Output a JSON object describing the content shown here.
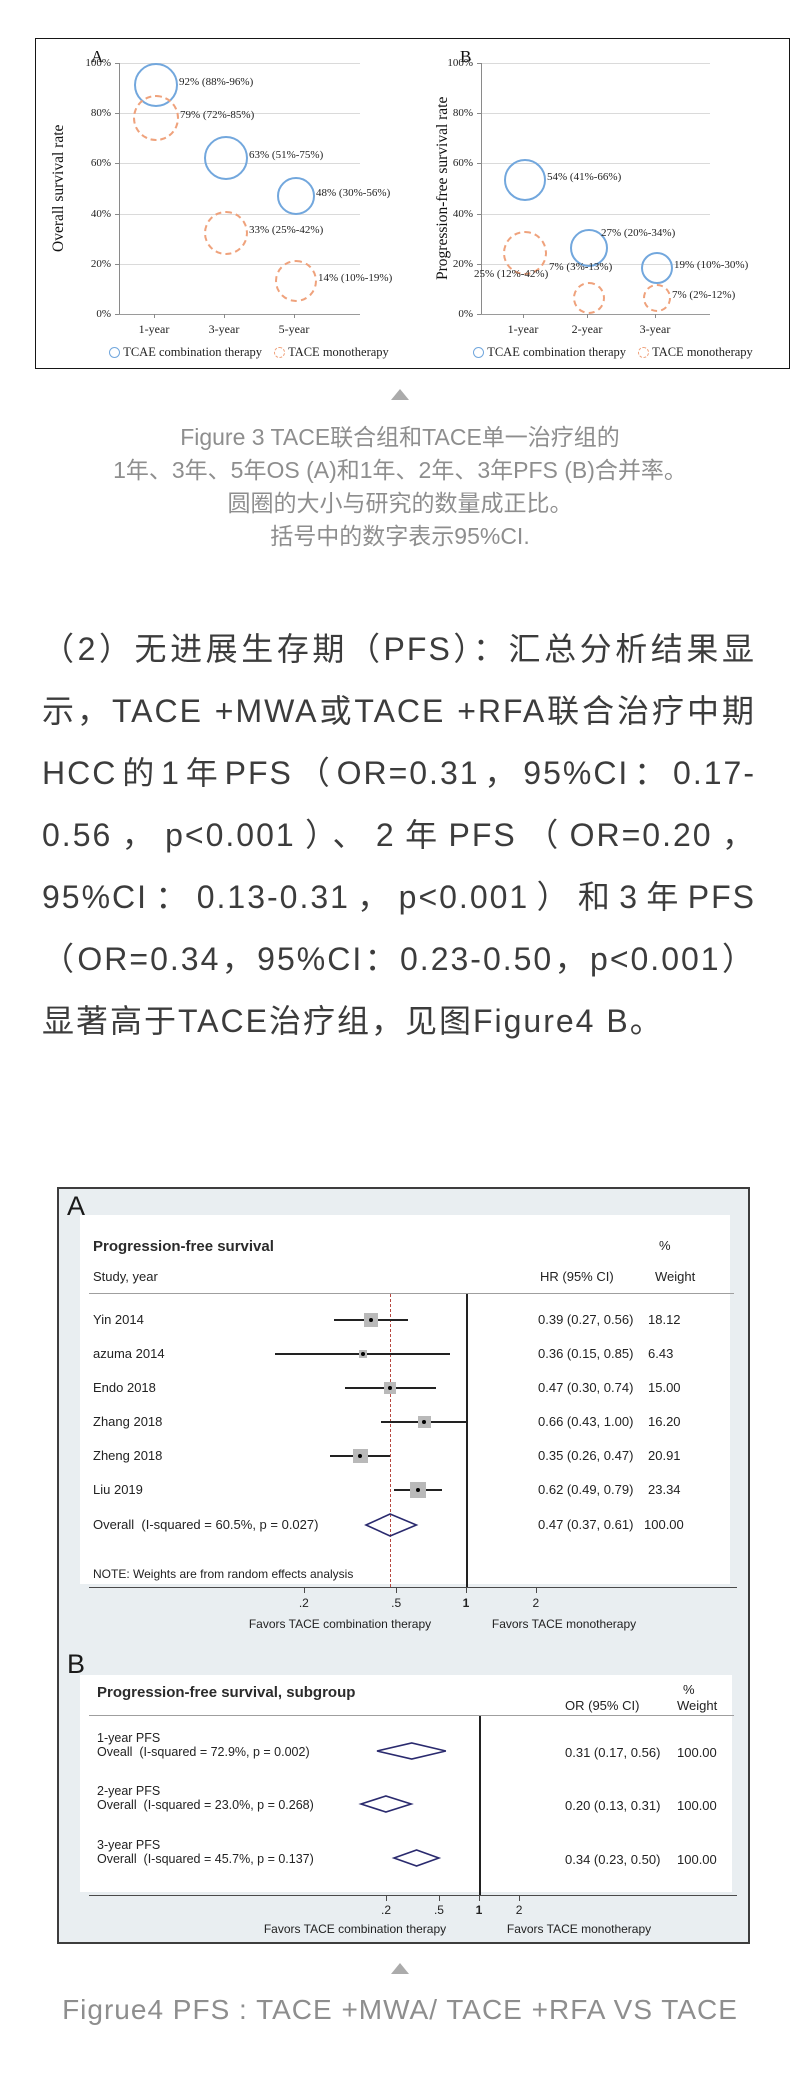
{
  "figure3_caption": {
    "line1": "Figure 3 TACE联合组和TACE单一治疗组的",
    "line2": "1年、3年、5年OS (A)和1年、2年、3年PFS (B)合并率。",
    "line3": "圆圈的大小与研究的数量成正比。",
    "line4": "括号中的数字表示95%CI."
  },
  "paragraph": "（2）无进展生存期（PFS）：汇总分析结果显示，TACE +MWA或TACE +RFA联合治疗中期HCC的1年PFS（OR=0.31，95%CI：0.17-0.56，p<0.001）、2年PFS（OR=0.20，95%CI：0.13-0.31，p<0.001）和3年PFS（OR=0.34，95%CI：0.23-0.50，p<0.001）显著高于TACE治疗组，见图Figure4 B。",
  "figure4_caption": "Figrue4  PFS : TACE +MWA/ TACE +RFA VS TACE",
  "colors": {
    "combo_blue": "#72a7dd",
    "mono_orange": "#efa27c",
    "diamond_navy": "#2a2a6e",
    "dashed_red": "#b64740",
    "fig4_bg": "#e9eef1",
    "caption_grey": "#8e8e8e"
  },
  "chart_data": [
    {
      "type": "scatter",
      "panel_label": "A",
      "ylabel": "Overall survival rate",
      "ylim": [
        "0%",
        "100%"
      ],
      "y_ticks": [
        "100%",
        "80%",
        "60%",
        "40%",
        "20%",
        "0%"
      ],
      "categories": [
        "1-year",
        "3-year",
        "5-year"
      ],
      "grid": true,
      "legend": [
        "TCAE combination therapy",
        "TACE monotherapy"
      ],
      "series": [
        {
          "name": "TCAE combination therapy",
          "style": "solid-blue",
          "points": [
            {
              "x": "1-year",
              "y": 92,
              "r": 20,
              "label": "92% (88%-96%)"
            },
            {
              "x": "3-year",
              "y": 63,
              "r": 20,
              "label": "63% (51%-75%)"
            },
            {
              "x": "5-year",
              "y": 48,
              "r": 17,
              "label": "48% (30%-56%)"
            }
          ]
        },
        {
          "name": "TACE monotherapy",
          "style": "dashed-orange",
          "points": [
            {
              "x": "1-year",
              "y": 79,
              "r": 21,
              "label": "79% (72%-85%)"
            },
            {
              "x": "3-year",
              "y": 33,
              "r": 20,
              "label": "33% (25%-42%)"
            },
            {
              "x": "5-year",
              "y": 14,
              "r": 19,
              "label": "14% (10%-19%)"
            }
          ]
        }
      ]
    },
    {
      "type": "scatter",
      "panel_label": "B",
      "ylabel": "Progression-free survival rate",
      "ylim": [
        "0%",
        "100%"
      ],
      "y_ticks": [
        "100%",
        "80%",
        "60%",
        "40%",
        "20%",
        "0%"
      ],
      "categories": [
        "1-year",
        "2-year",
        "3-year"
      ],
      "grid": true,
      "legend": [
        "TCAE combination therapy",
        "TACE monotherapy"
      ],
      "series": [
        {
          "name": "TCAE combination therapy",
          "style": "solid-blue",
          "points": [
            {
              "x": "1-year",
              "y": 54,
              "r": 19,
              "label": "54% (41%-66%)"
            },
            {
              "x": "2-year",
              "y": 27,
              "r": 17,
              "label": "27% (20%-34%)",
              "label_at": [
                565,
                195
              ]
            },
            {
              "x": "3-year",
              "y": 19,
              "r": 14,
              "label": "19% (10%-30%)"
            }
          ]
        },
        {
          "name": "TACE monotherapy",
          "style": "dashed-orange",
          "points": [
            {
              "x": "1-year",
              "y": 25,
              "r": 20,
              "label": "25% (12%-42%)",
              "label_at": [
                438,
                236
              ]
            },
            {
              "x": "2-year",
              "y": 7,
              "r": 14,
              "label": "7% (3%-13%)",
              "label_at": [
                513,
                229
              ]
            },
            {
              "x": "3-year",
              "y": 7,
              "r": 12,
              "label": "7% (2%-12%)"
            }
          ]
        }
      ]
    },
    {
      "type": "forest",
      "panel_label": "A",
      "title": "Progression-free survival",
      "pct_header": "%",
      "study_header": "Study, year",
      "effect_header": "HR (95% CI)",
      "weight_header": "Weight",
      "scale": "log",
      "rows": [
        {
          "study": "Yin 2014",
          "est": 0.39,
          "lo": 0.27,
          "hi": 0.56,
          "ci_text": "0.39 (0.27, 0.56)",
          "weight": "18.12"
        },
        {
          "study": "azuma 2014",
          "est": 0.36,
          "lo": 0.15,
          "hi": 0.85,
          "ci_text": "0.36 (0.15, 0.85)",
          "weight": "6.43"
        },
        {
          "study": "Endo 2018",
          "est": 0.47,
          "lo": 0.3,
          "hi": 0.74,
          "ci_text": "0.47 (0.30, 0.74)",
          "weight": "15.00"
        },
        {
          "study": "Zhang 2018",
          "est": 0.66,
          "lo": 0.43,
          "hi": 1.0,
          "ci_text": "0.66 (0.43, 1.00)",
          "weight": "16.20"
        },
        {
          "study": "Zheng 2018",
          "est": 0.35,
          "lo": 0.26,
          "hi": 0.47,
          "ci_text": "0.35 (0.26, 0.47)",
          "weight": "20.91"
        },
        {
          "study": "Liu 2019",
          "est": 0.62,
          "lo": 0.49,
          "hi": 0.79,
          "ci_text": "0.62 (0.49, 0.79)",
          "weight": "23.34"
        }
      ],
      "overall": {
        "label": "Overall  (I-squared = 60.5%, p = 0.027)",
        "est": 0.47,
        "lo": 0.37,
        "hi": 0.61,
        "ci_text": "0.47 (0.37, 0.61)",
        "weight": "100.00"
      },
      "note": "NOTE: Weights are from random effects analysis",
      "axis_ticks": [
        0.2,
        0.5,
        1,
        2
      ],
      "axis_tick_labels": [
        ".2",
        ".5",
        "1",
        "2"
      ],
      "favors_left": "Favors TACE combination therapy",
      "favors_right": "Favors TACE monotherapy"
    },
    {
      "type": "forest",
      "panel_label": "B",
      "title": "Progression-free survival, subgroup",
      "pct_header": "%",
      "effect_header": "OR (95% CI)",
      "weight_header": "Weight",
      "scale": "log",
      "groups": [
        {
          "name": "1-year PFS",
          "label": "Oveall  (I-squared = 72.9%, p = 0.002)",
          "est": 0.31,
          "lo": 0.17,
          "hi": 0.56,
          "ci_text": "0.31 (0.17, 0.56)",
          "weight": "100.00"
        },
        {
          "name": "2-year PFS",
          "label": "Overall  (I-squared = 23.0%, p = 0.268)",
          "est": 0.2,
          "lo": 0.13,
          "hi": 0.31,
          "ci_text": "0.20 (0.13, 0.31)",
          "weight": "100.00"
        },
        {
          "name": "3-year PFS",
          "label": "Overall  (I-squared = 45.7%, p = 0.137)",
          "est": 0.34,
          "lo": 0.23,
          "hi": 0.5,
          "ci_text": "0.34 (0.23, 0.50)",
          "weight": "100.00"
        }
      ],
      "axis_ticks": [
        0.2,
        0.5,
        1,
        2
      ],
      "axis_tick_labels": [
        ".2",
        ".5",
        "1",
        "2"
      ],
      "favors_left": "Favors TACE combination therapy",
      "favors_right": "Favors TACE monotherapy"
    }
  ]
}
